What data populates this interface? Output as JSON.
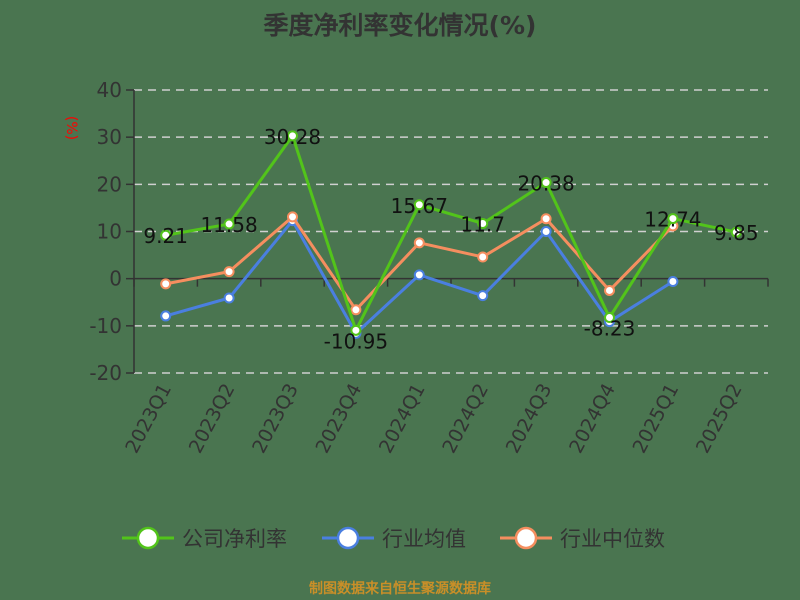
{
  "title": "季度净利率变化情况(%)",
  "footer": "制图数据来自恒生聚源数据库",
  "y_axis_unit": "(%)",
  "colors": {
    "background": "#4a7550",
    "company": "#52c41a",
    "industry_avg": "#4a7fe0",
    "industry_median": "#f58e5f",
    "axis": "#333333",
    "grid": "#d0d0d0",
    "unit_label": "#ff0000",
    "footer": "#c98f28"
  },
  "legend": [
    {
      "name": "公司净利率",
      "color": "#52c41a"
    },
    {
      "name": "行业均值",
      "color": "#4a7fe0"
    },
    {
      "name": "行业中位数",
      "color": "#f58e5f"
    }
  ],
  "chart_data": {
    "type": "line",
    "title": "季度净利率变化情况(%)",
    "xlabel": "",
    "ylabel": "(%)",
    "ylim": [
      -20,
      40
    ],
    "yticks": [
      -20,
      -10,
      0,
      10,
      20,
      30,
      40
    ],
    "grid": true,
    "legend_position": "bottom",
    "categories": [
      "2023Q1",
      "2023Q2",
      "2023Q3",
      "2023Q4",
      "2024Q1",
      "2024Q2",
      "2024Q3",
      "2024Q4",
      "2025Q1",
      "2025Q2"
    ],
    "series": [
      {
        "name": "公司净利率",
        "values": [
          9.21,
          11.58,
          30.28,
          -10.95,
          15.67,
          11.7,
          20.38,
          -8.23,
          12.74,
          9.85
        ],
        "labeled": true
      },
      {
        "name": "行业均值",
        "values": [
          -7.9,
          -4.1,
          12.3,
          -11.6,
          0.8,
          -3.6,
          10.0,
          -9.1,
          -0.6,
          null
        ]
      },
      {
        "name": "行业中位数",
        "values": [
          -1.1,
          1.5,
          13.1,
          -6.6,
          7.6,
          4.6,
          12.7,
          -2.5,
          11.2,
          null
        ]
      }
    ]
  }
}
